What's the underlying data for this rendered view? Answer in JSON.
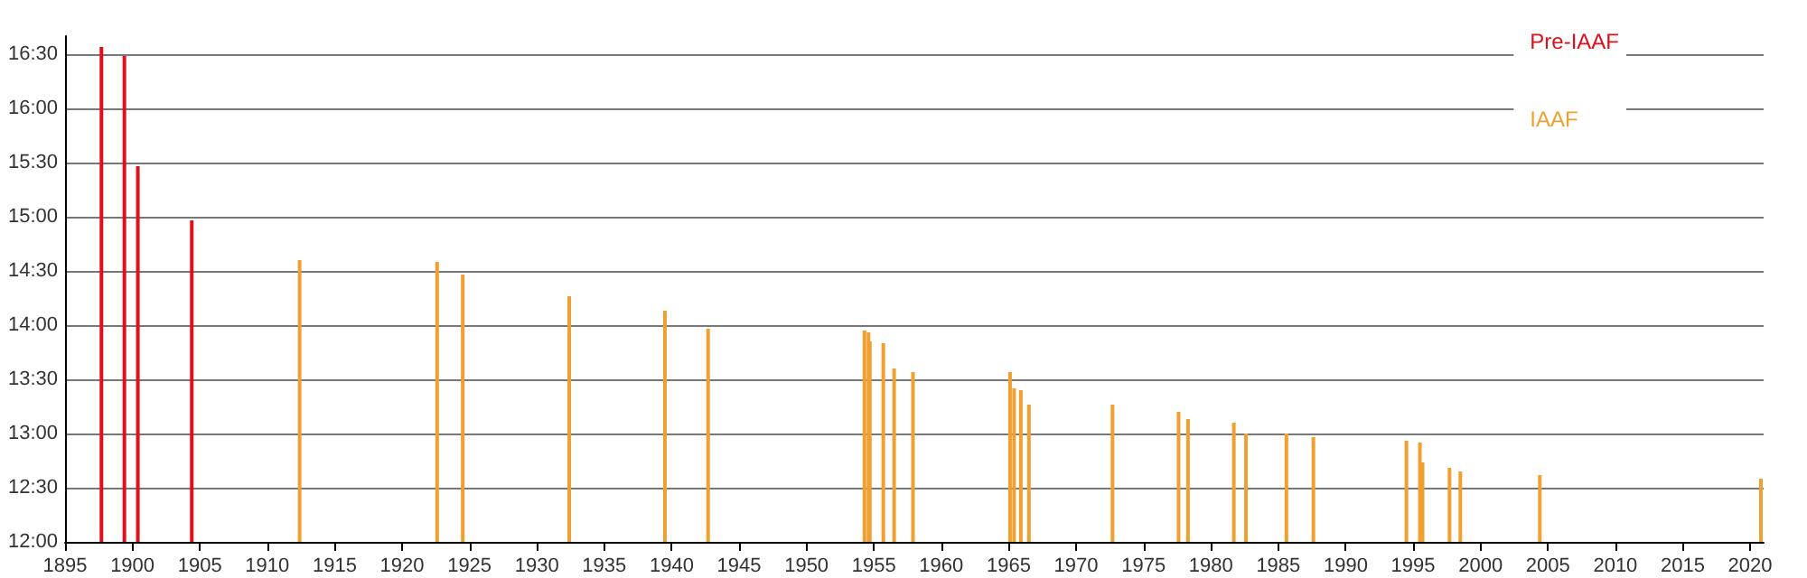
{
  "chart_data": {
    "type": "bar",
    "xlim": [
      1895,
      2021
    ],
    "xticks": [
      1895,
      1900,
      1905,
      1910,
      1915,
      1920,
      1925,
      1930,
      1935,
      1940,
      1945,
      1950,
      1955,
      1960,
      1965,
      1970,
      1975,
      1980,
      1985,
      1990,
      1995,
      2000,
      2005,
      2010,
      2015,
      2020
    ],
    "ylim": [
      720,
      1000
    ],
    "yticks": [
      {
        "value": 720,
        "label": "12:00"
      },
      {
        "value": 750,
        "label": "12:30"
      },
      {
        "value": 780,
        "label": "13:00"
      },
      {
        "value": 810,
        "label": "13:30"
      },
      {
        "value": 840,
        "label": "14:00"
      },
      {
        "value": 870,
        "label": "14:30"
      },
      {
        "value": 900,
        "label": "15:00"
      },
      {
        "value": 930,
        "label": "15:30"
      },
      {
        "value": 960,
        "label": "16:00"
      },
      {
        "value": 990,
        "label": "16:30"
      }
    ],
    "grid": "y",
    "legend": "top right",
    "series": [
      {
        "name": "Pre-IAAF",
        "color": "#e0101a",
        "x": [
          1897.7,
          1899.4,
          1900.4,
          1904.4
        ],
        "values": [
          994,
          989,
          928,
          898
        ]
      },
      {
        "name": "IAAF",
        "color": "#f0a030",
        "x": [
          1912.4,
          1922.6,
          1924.5,
          1932.4,
          1939.5,
          1942.7,
          1954.3,
          1954.6,
          1954.7,
          1955.7,
          1956.5,
          1957.9,
          1965.1,
          1965.4,
          1965.9,
          1966.5,
          1972.7,
          1977.6,
          1978.3,
          1981.7,
          1982.6,
          1985.6,
          1987.6,
          1994.5,
          1995.5,
          1995.7,
          1997.7,
          1998.5,
          2004.4,
          2020.8
        ],
        "values": [
          876,
          875,
          868,
          856,
          848,
          838,
          837,
          836,
          831,
          830,
          816,
          814,
          814,
          805,
          804,
          796,
          796,
          792,
          788,
          786,
          780,
          780,
          778,
          776,
          775,
          764,
          761,
          759,
          757,
          755
        ]
      }
    ]
  }
}
